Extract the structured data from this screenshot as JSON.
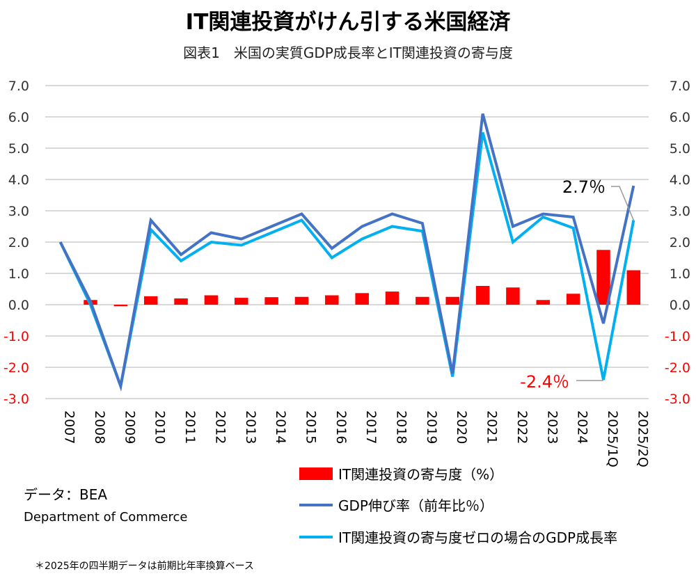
{
  "chart_data": {
    "type": "bar+line",
    "title": "IT関連投資がけん引する米国経済",
    "subtitle": "図表1　米国の実質GDP成長率とIT関連投資の寄与度",
    "categories": [
      "2007",
      "2008",
      "2009",
      "2010",
      "2011",
      "2012",
      "2013",
      "2014",
      "2015",
      "2016",
      "2017",
      "2018",
      "2019",
      "2020",
      "2021",
      "2022",
      "2023",
      "2024",
      "2025/1Q",
      "2025/2Q"
    ],
    "ylim": [
      -3.0,
      7.0
    ],
    "yticks": [
      "7.0",
      "6.0",
      "5.0",
      "4.0",
      "3.0",
      "2.0",
      "1.0",
      "0.0",
      "-1.0",
      "-2.0",
      "-3.0"
    ],
    "grid": true,
    "legend_placement": "bottom-right",
    "series": [
      {
        "name": "IT関連投資の寄与度（%）",
        "type": "bar",
        "color": "#ff0000",
        "values": [
          null,
          0.15,
          -0.05,
          0.27,
          0.2,
          0.3,
          0.22,
          0.24,
          0.25,
          0.3,
          0.37,
          0.42,
          0.25,
          0.25,
          0.6,
          0.55,
          0.15,
          0.35,
          1.75,
          1.1
        ]
      },
      {
        "name": "GDP伸び率（前年比％）",
        "type": "line",
        "color": "#4472c4",
        "values": [
          2.0,
          0.1,
          -2.6,
          2.7,
          1.6,
          2.3,
          2.1,
          2.5,
          2.9,
          1.8,
          2.5,
          2.9,
          2.6,
          -2.2,
          6.1,
          2.5,
          2.9,
          2.8,
          -0.6,
          3.8
        ]
      },
      {
        "name": "IT関連投資の寄与度ゼロの場合のGDP成長率",
        "type": "line",
        "color": "#00b0f0",
        "values": [
          2.0,
          0.0,
          -2.6,
          2.4,
          1.4,
          2.0,
          1.9,
          2.3,
          2.7,
          1.5,
          2.1,
          2.5,
          2.35,
          -2.3,
          5.5,
          2.0,
          2.8,
          2.45,
          -2.4,
          2.7
        ]
      }
    ],
    "annotations": [
      {
        "text": "2.7％",
        "category": "2025/2Q",
        "value": 2.7,
        "color": "#000000"
      },
      {
        "text": "-2.4％",
        "category": "2025/1Q",
        "value": -2.4,
        "color": "#ff0000"
      }
    ]
  },
  "source": {
    "label": "データ：BEA",
    "org": "Department of Commerce"
  },
  "note": "＊2025年の四半期データは前期比年率換算ベース"
}
